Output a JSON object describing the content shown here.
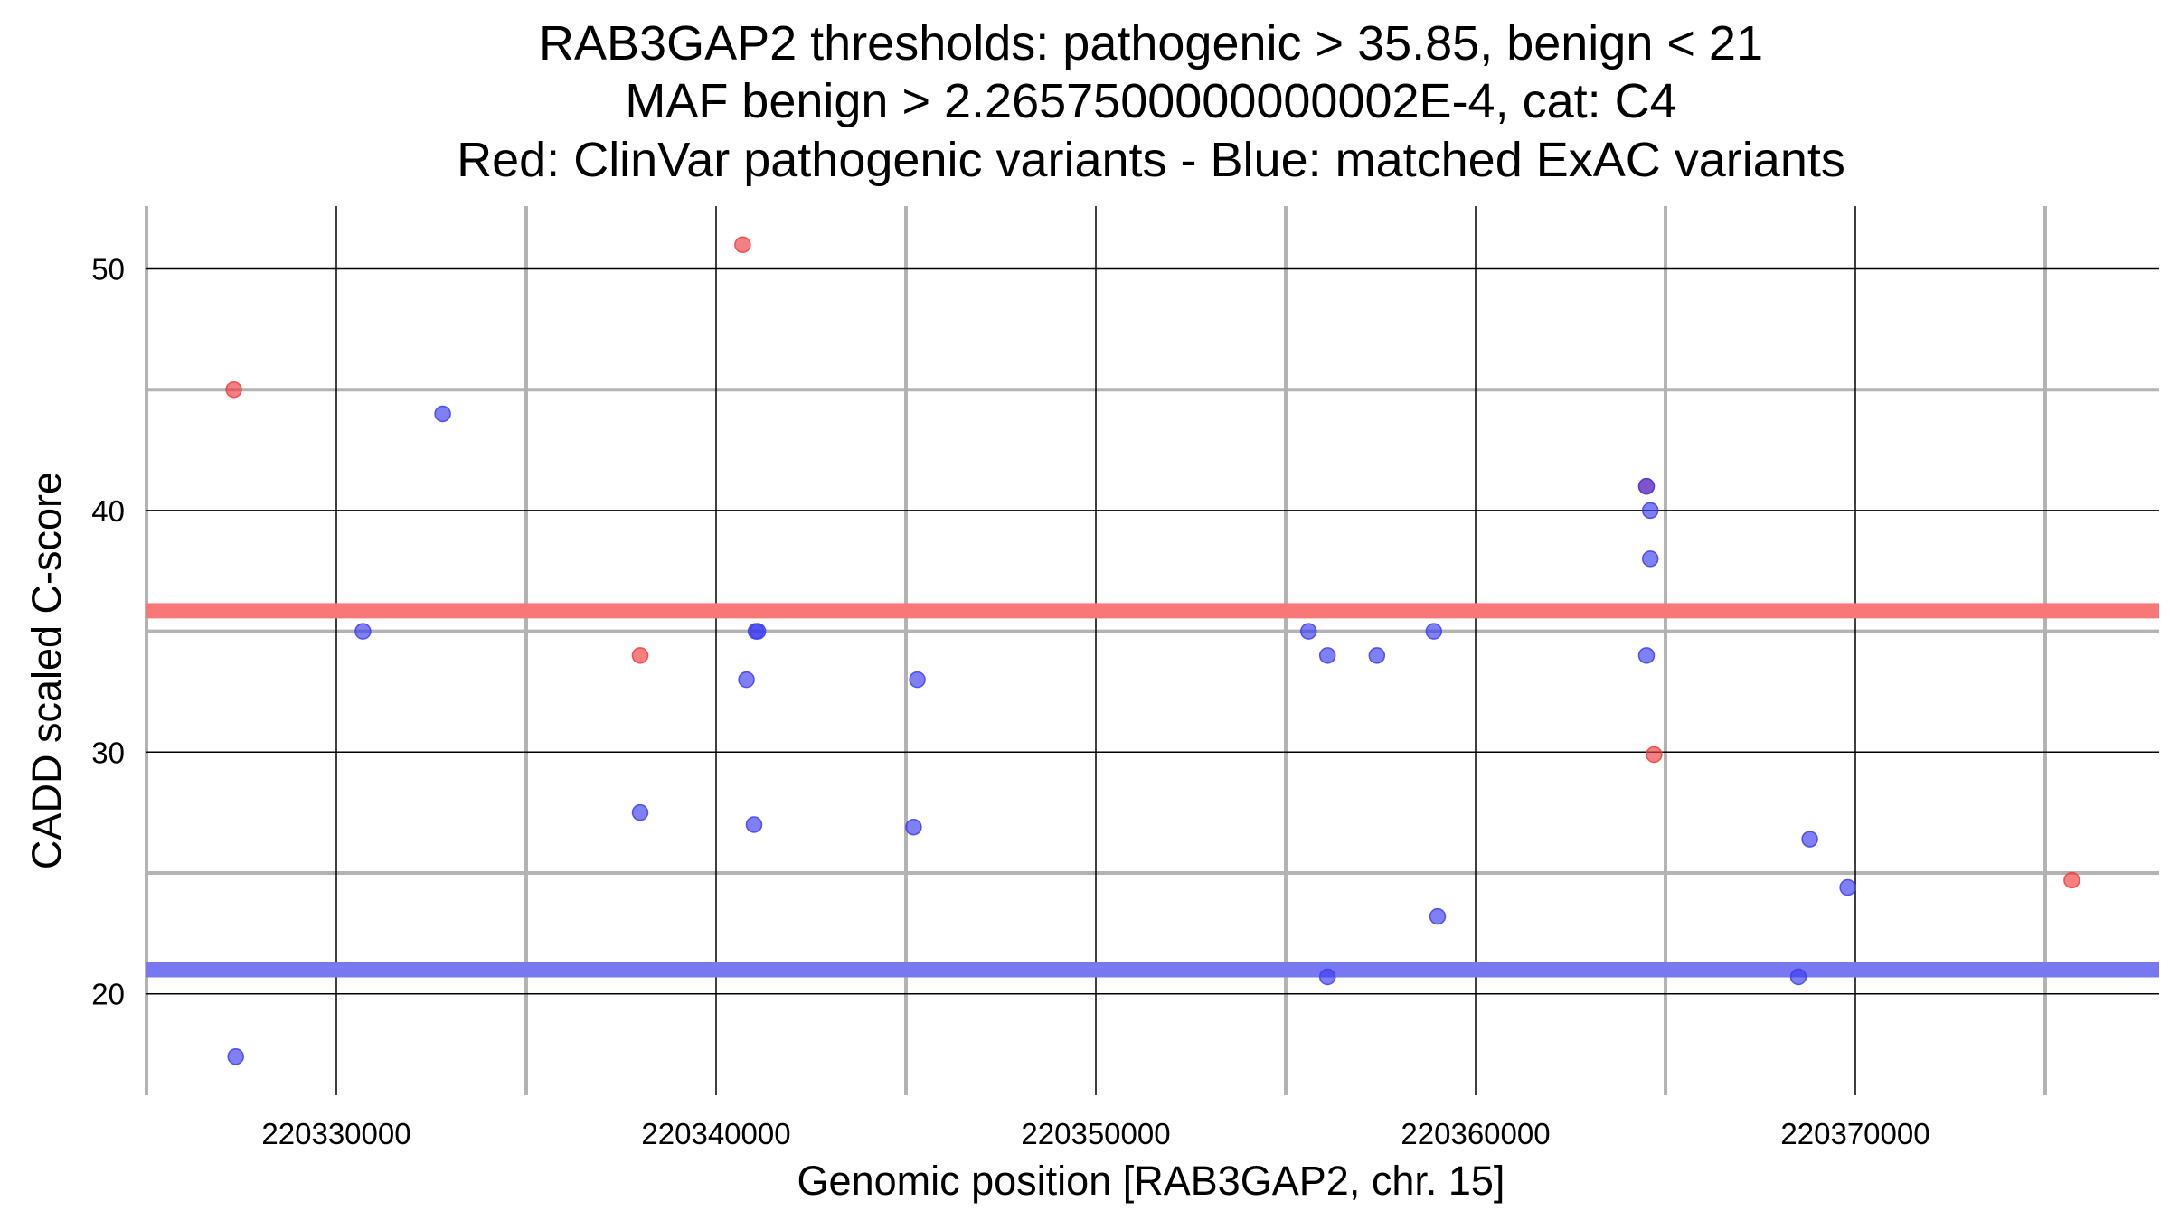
{
  "chart_data": {
    "type": "scatter",
    "title_lines": [
      "RAB3GAP2 thresholds: pathogenic > 35.85, benign < 21",
      "MAF benign > 2.2657500000000002E-4, cat: C4",
      "Red: ClinVar pathogenic variants - Blue: matched ExAC variants"
    ],
    "xlabel": "Genomic position [RAB3GAP2, chr. 15]",
    "ylabel": "CADD scaled C-score",
    "xlim": [
      220325000,
      220378000
    ],
    "ylim": [
      15.8,
      52.6
    ],
    "x_ticks": [
      220330000,
      220340000,
      220350000,
      220360000,
      220370000
    ],
    "x_tick_labels": [
      "220330000",
      "220340000",
      "220350000",
      "220360000",
      "220370000"
    ],
    "x_minor_grid": [
      220325000,
      220335000,
      220345000,
      220355000,
      220365000,
      220375000
    ],
    "y_ticks": [
      20,
      30,
      40,
      50
    ],
    "y_tick_labels": [
      "20",
      "30",
      "40",
      "50"
    ],
    "y_minor_grid": [
      25,
      35,
      45
    ],
    "grid": true,
    "thresholds": [
      {
        "name": "pathogenic",
        "value": 35.85,
        "color": "#f87878"
      },
      {
        "name": "benign",
        "value": 21,
        "color": "#7878f0"
      }
    ],
    "colors": {
      "pathogenic": "#f03c3c",
      "benign": "#3c3cf0",
      "grid_major": "#000000",
      "grid_minor": "#b3b3b3"
    },
    "series": [
      {
        "key": "pathogenic",
        "color": "#f03c3c",
        "points": [
          {
            "x": 220327300,
            "y": 45
          },
          {
            "x": 220340700,
            "y": 51
          },
          {
            "x": 220338000,
            "y": 34
          },
          {
            "x": 220364500,
            "y": 41
          },
          {
            "x": 220364700,
            "y": 29.9
          },
          {
            "x": 220375700,
            "y": 24.7
          }
        ]
      },
      {
        "key": "benign",
        "color": "#3c3cf0",
        "points": [
          {
            "x": 220327350,
            "y": 17.4
          },
          {
            "x": 220330700,
            "y": 35
          },
          {
            "x": 220332800,
            "y": 44
          },
          {
            "x": 220338000,
            "y": 27.5
          },
          {
            "x": 220340800,
            "y": 33
          },
          {
            "x": 220341000,
            "y": 27
          },
          {
            "x": 220341050,
            "y": 35
          },
          {
            "x": 220341100,
            "y": 35
          },
          {
            "x": 220345200,
            "y": 26.9
          },
          {
            "x": 220345300,
            "y": 33
          },
          {
            "x": 220355600,
            "y": 35
          },
          {
            "x": 220356100,
            "y": 34
          },
          {
            "x": 220356100,
            "y": 20.7
          },
          {
            "x": 220357400,
            "y": 34
          },
          {
            "x": 220358900,
            "y": 35
          },
          {
            "x": 220359000,
            "y": 23.2
          },
          {
            "x": 220364500,
            "y": 41
          },
          {
            "x": 220364600,
            "y": 40
          },
          {
            "x": 220364600,
            "y": 38
          },
          {
            "x": 220364500,
            "y": 34
          },
          {
            "x": 220368500,
            "y": 20.7
          },
          {
            "x": 220368800,
            "y": 26.4
          },
          {
            "x": 220369800,
            "y": 24.4
          }
        ]
      }
    ]
  }
}
